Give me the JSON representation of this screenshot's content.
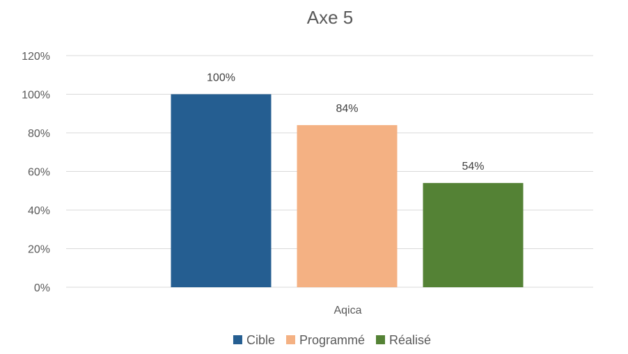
{
  "chart_data": {
    "type": "bar",
    "title": "Axe 5",
    "categories": [
      "Aqica"
    ],
    "series": [
      {
        "name": "Cible",
        "values": [
          100
        ],
        "label": "100%",
        "color": "#255e91"
      },
      {
        "name": "Programmé",
        "values": [
          84
        ],
        "label": "84%",
        "color": "#f4b183"
      },
      {
        "name": "Réalisé",
        "values": [
          54
        ],
        "label": "54%",
        "color": "#548235"
      }
    ],
    "ylim": [
      0,
      120
    ],
    "yticks": [
      "0%",
      "20%",
      "40%",
      "60%",
      "80%",
      "100%",
      "120%"
    ],
    "xlabel": "",
    "ylabel": "",
    "grid": true,
    "legend_position": "bottom"
  }
}
